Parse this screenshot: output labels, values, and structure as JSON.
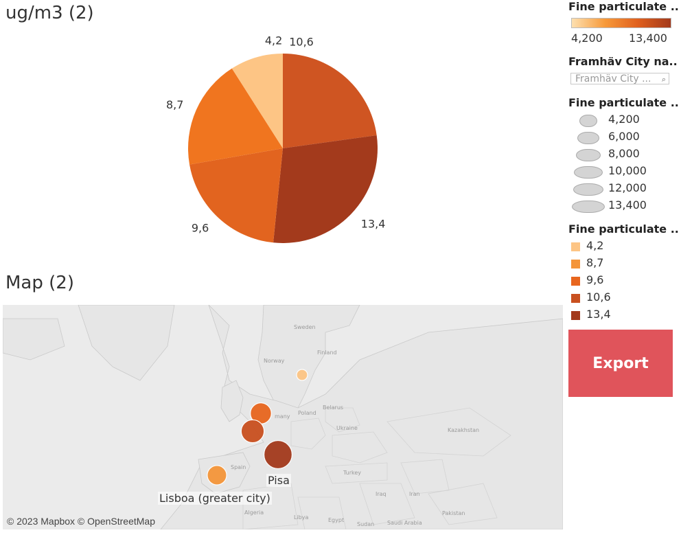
{
  "pie_title": "ug/m3 (2)",
  "map_title": "Map (2)",
  "chart_data": {
    "type": "pie",
    "title": "ug/m3 (2)",
    "categories": [
      "10,6",
      "13,4",
      "9,6",
      "8,7",
      "4,2"
    ],
    "values": [
      10.6,
      13.4,
      9.6,
      8.7,
      4.2
    ],
    "labels": [
      "10,6",
      "13,4",
      "9,6",
      "8,7",
      "4,2"
    ],
    "colors": [
      "#cf5522",
      "#a33a1c",
      "#e2641f",
      "#f0751f",
      "#fdc585"
    ]
  },
  "map": {
    "countries": [
      "Sweden",
      "Finland",
      "Norway",
      "Poland",
      "Belarus",
      "Ukraine",
      "Kazakhstan",
      "Turkey",
      "Spain",
      "Algeria",
      "Libya",
      "Egypt",
      "Iraq",
      "Iran",
      "Saudi Arabia",
      "Sudan",
      "Pakistan",
      "Ger-many"
    ],
    "country_labels": {
      "sweden": "Sweden",
      "finland": "Finland",
      "norway": "Norway",
      "poland": "Poland",
      "belarus": "Belarus",
      "ukraine": "Ukraine",
      "kazakhstan": "Kazakhstan",
      "turkey": "Turkey",
      "spain": "Spain",
      "algeria": "Algeria",
      "libya": "Libya",
      "egypt": "Egypt",
      "iraq": "Iraq",
      "iran": "Iran",
      "saudi": "Saudi Arabia",
      "sudan": "Sudan",
      "pakistan": "Pakistan",
      "germany": "many"
    },
    "bubbles": [
      {
        "city": "",
        "value": 4.2,
        "color": "#fdc585"
      },
      {
        "city": "",
        "value": 9.6,
        "color": "#e8661e"
      },
      {
        "city": "",
        "value": 10.6,
        "color": "#c9501f"
      },
      {
        "city": "Pisa",
        "value": 13.4,
        "color": "#a33a1c"
      },
      {
        "city": "Lisboa (greater city)",
        "value": 8.7,
        "color": "#f4953a"
      }
    ],
    "copyright": "© 2023 Mapbox © OpenStreetMap"
  },
  "legend": {
    "color_title": "Fine particulate ..",
    "color_min": "4,200",
    "color_max": "13,400",
    "filter_title": "Framhäv City na..",
    "filter_placeholder": "Framhäv City ...",
    "size_title": "Fine particulate ..",
    "size_items": [
      "4,200",
      "6,000",
      "8,000",
      "10,000",
      "12,000",
      "13,400"
    ],
    "cat_title": "Fine particulate ..",
    "cat_items": [
      {
        "label": "4,2",
        "color": "#fdc585"
      },
      {
        "label": "8,7",
        "color": "#f4953a"
      },
      {
        "label": "9,6",
        "color": "#e8661e"
      },
      {
        "label": "10,6",
        "color": "#c9501f"
      },
      {
        "label": "13,4",
        "color": "#a33a1c"
      }
    ]
  },
  "export_label": "Export"
}
